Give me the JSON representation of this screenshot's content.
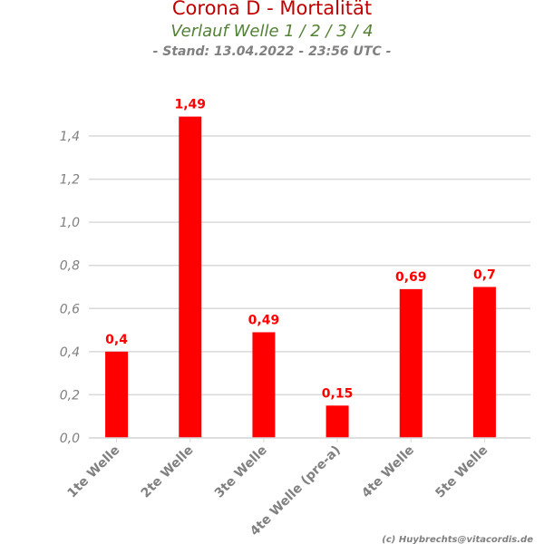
{
  "chart_data": {
    "type": "bar",
    "title": "Corona D - Mortalität",
    "subtitle": "Verlauf Welle 1 / 2 / 3 / 4",
    "stand": "- Stand: 13.04.2022 - 23:56 UTC -",
    "categories": [
      "1te Welle",
      "2te Welle",
      "3te Welle",
      "4te Welle (pre-a)",
      "4te Welle",
      "5te Welle"
    ],
    "values": [
      0.4,
      1.49,
      0.49,
      0.15,
      0.69,
      0.7
    ],
    "data_labels": [
      "0,4",
      "1,49",
      "0,49",
      "0,15",
      "0,69",
      "0,7"
    ],
    "ylim": [
      0,
      1.4
    ],
    "yticks": [
      0,
      0.2,
      0.4,
      0.6,
      0.8,
      1.0,
      1.2,
      1.4
    ],
    "ytick_labels": [
      "0,0",
      "0,2",
      "0,4",
      "0,6",
      "0,8",
      "1,0",
      "1,2",
      "1,4"
    ],
    "xlabel": "",
    "ylabel": "",
    "grid": true,
    "legend": "none",
    "bar_color": "#ff0000",
    "credit": "(c) Huybrechts@vitacordis.de"
  }
}
